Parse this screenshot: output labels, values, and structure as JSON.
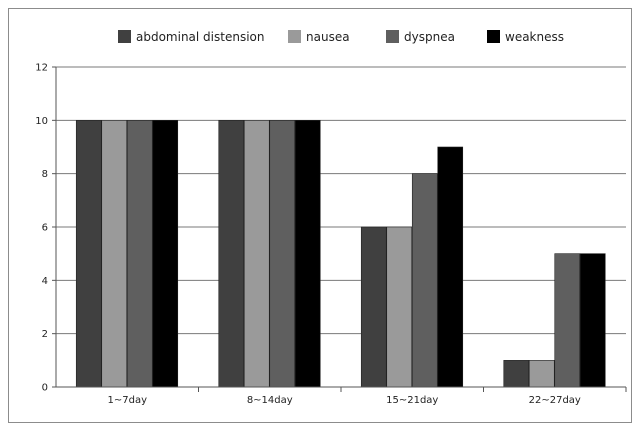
{
  "chart_data": {
    "type": "bar",
    "categories": [
      "1~7day",
      "8~14day",
      "15~21day",
      "22~27day"
    ],
    "series": [
      {
        "name": "abdominal distension",
        "values": [
          10,
          10,
          6,
          1
        ],
        "color": "#404040"
      },
      {
        "name": "nausea",
        "values": [
          10,
          10,
          6,
          1
        ],
        "color": "#9a9a9a"
      },
      {
        "name": "dyspnea",
        "values": [
          10,
          10,
          8,
          5
        ],
        "color": "#5f5f5f"
      },
      {
        "name": "weakness",
        "values": [
          10,
          10,
          9,
          5
        ],
        "color": "#000000"
      }
    ],
    "ylim": [
      0,
      12
    ],
    "yticks": [
      0,
      2,
      4,
      6,
      8,
      10,
      12
    ],
    "grid": true,
    "legend_position": "top",
    "title": "",
    "xlabel": "",
    "ylabel": ""
  }
}
